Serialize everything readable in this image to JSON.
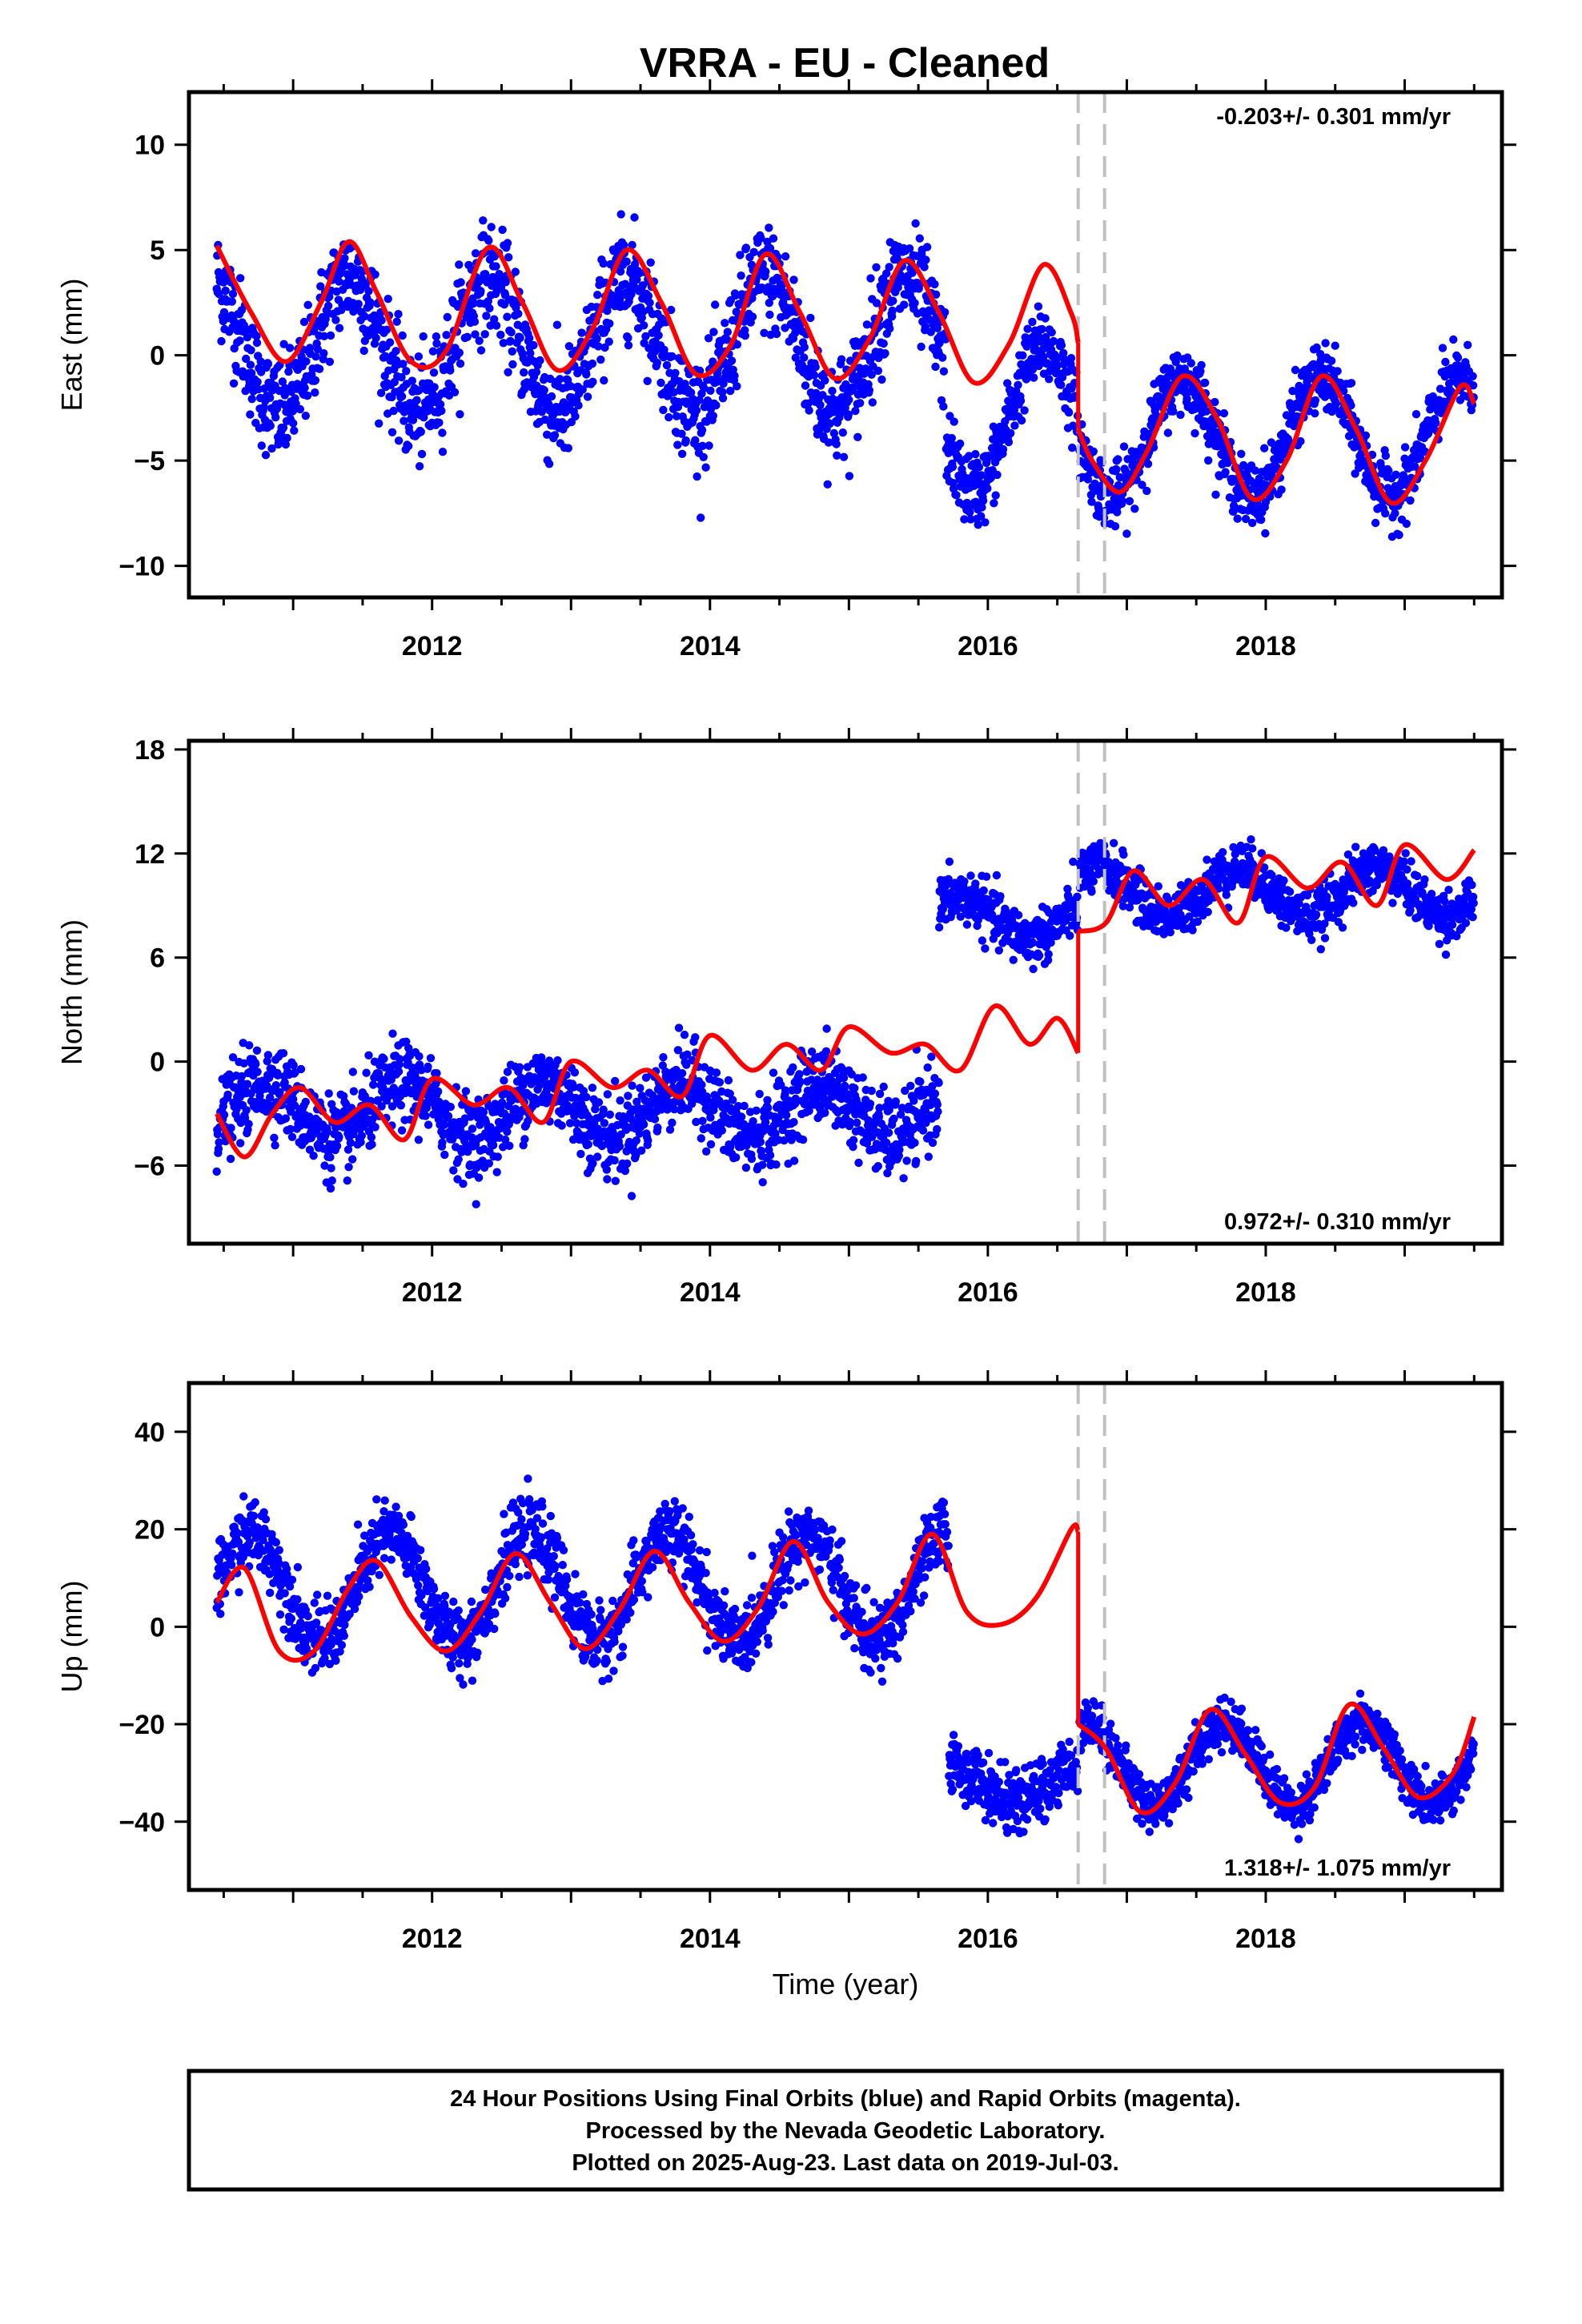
{
  "title": "VRRA  - EU - Cleaned",
  "chart_data": [
    {
      "type": "scatter",
      "name": "east",
      "ylabel": "East (mm)",
      "xlim": [
        2010.25,
        2019.7
      ],
      "ylim": [
        -11.5,
        12.5
      ],
      "yticks": [
        10,
        5,
        0,
        -5,
        -10
      ],
      "ytick_labels": [
        "10",
        "5",
        "0",
        "−5",
        "−10"
      ],
      "xticks": [
        2012,
        2014,
        2016,
        2018
      ],
      "xtick_labels": [
        "2012",
        "2014",
        "2016",
        "2018"
      ],
      "rate_label": "-0.203+/- 0.301 mm/yr",
      "rate_position": "top-right",
      "offsets_years": [
        2016.65,
        2016.84
      ],
      "model_segments": [
        {
          "x": [
            2010.45,
            2010.7,
            2010.95,
            2011.2,
            2011.4,
            2011.6,
            2011.85,
            2012.1,
            2012.4,
            2012.65,
            2012.9,
            2013.15,
            2013.4,
            2013.65,
            2013.9,
            2014.15,
            2014.4,
            2014.65,
            2014.9,
            2015.15,
            2015.4,
            2015.65,
            2015.9,
            2016.15,
            2016.4,
            2016.6,
            2016.65
          ],
          "y": [
            5.2,
            2.0,
            -0.3,
            2.5,
            5.4,
            3.0,
            -0.3,
            0.2,
            5.1,
            2.5,
            -0.7,
            1.2,
            5.0,
            2.5,
            -0.9,
            0.5,
            4.8,
            2.0,
            -1.1,
            0.8,
            4.5,
            2.0,
            -1.3,
            0.5,
            4.3,
            2.0,
            0.6
          ]
        },
        {
          "x": [
            2016.65,
            2016.75,
            2016.95,
            2017.15,
            2017.4,
            2017.65,
            2017.9,
            2018.15,
            2018.4,
            2018.65,
            2018.9,
            2019.15,
            2019.4,
            2019.5
          ],
          "y": [
            -3.5,
            -5.0,
            -6.5,
            -4.5,
            -1.0,
            -3.0,
            -6.8,
            -5.0,
            -1.0,
            -3.5,
            -7.0,
            -5.0,
            -1.5,
            -2.3
          ]
        }
      ],
      "scatter_segments": [
        {
          "x0": 2010.45,
          "x1": 2015.7,
          "offset": 0.5,
          "amp": 3.2,
          "phase": 0.0,
          "noise": 2.3
        },
        {
          "x0": 2015.7,
          "x1": 2016.65,
          "offset": -3.0,
          "amp": 3.4,
          "phase": 0.0,
          "noise": 1.6
        },
        {
          "x0": 2016.66,
          "x1": 2019.5,
          "offset": -3.9,
          "amp": 2.8,
          "phase": 0.0,
          "noise": 1.4
        }
      ]
    },
    {
      "type": "scatter",
      "name": "north",
      "ylabel": "North (mm)",
      "xlim": [
        2010.25,
        2019.7
      ],
      "ylim": [
        -10.5,
        18.5
      ],
      "yticks": [
        18,
        12,
        6,
        0,
        -6
      ],
      "ytick_labels": [
        "18",
        "12",
        "6",
        "0",
        "−6"
      ],
      "xticks": [
        2012,
        2014,
        2016,
        2018
      ],
      "xtick_labels": [
        "2012",
        "2014",
        "2016",
        "2018"
      ],
      "rate_label": "0.972+/- 0.310 mm/yr",
      "rate_position": "bottom-right",
      "offsets_years": [
        2016.65,
        2016.84
      ],
      "model_segments": [
        {
          "x": [
            2010.45,
            2010.65,
            2010.85,
            2011.05,
            2011.3,
            2011.55,
            2011.8,
            2012.0,
            2012.3,
            2012.55,
            2012.8,
            2013.0,
            2013.3,
            2013.55,
            2013.8,
            2014.0,
            2014.3,
            2014.55,
            2014.8,
            2015.0,
            2015.3,
            2015.55,
            2015.8,
            2016.05,
            2016.3,
            2016.5,
            2016.65
          ],
          "y": [
            -3.0,
            -5.5,
            -3.0,
            -1.5,
            -3.5,
            -2.5,
            -4.5,
            -1.0,
            -2.5,
            -1.5,
            -3.5,
            0.0,
            -1.5,
            -0.5,
            -2.0,
            1.5,
            -0.5,
            1.0,
            -0.5,
            2.0,
            0.5,
            1.0,
            -0.5,
            3.2,
            1.0,
            2.5,
            0.5
          ]
        },
        {
          "x": [
            2016.65,
            2016.85,
            2017.05,
            2017.3,
            2017.55,
            2017.8,
            2018.0,
            2018.3,
            2018.55,
            2018.8,
            2019.0,
            2019.3,
            2019.5
          ],
          "y": [
            7.5,
            8.0,
            11.0,
            9.0,
            10.5,
            8.0,
            11.8,
            10.0,
            11.5,
            9.0,
            12.5,
            10.5,
            12.2
          ]
        }
      ],
      "scatter_segments": [
        {
          "x0": 2010.45,
          "x1": 2015.65,
          "offset": -2.8,
          "amp": 1.6,
          "phase": 0.4,
          "noise": 2.1
        },
        {
          "x0": 2015.65,
          "x1": 2016.65,
          "offset": 8.3,
          "amp": 1.2,
          "phase": 0.4,
          "noise": 1.4
        },
        {
          "x0": 2016.66,
          "x1": 2019.5,
          "offset": 9.8,
          "amp": 1.4,
          "phase": 0.4,
          "noise": 1.3
        }
      ]
    },
    {
      "type": "scatter",
      "name": "up",
      "ylabel": "Up (mm)",
      "xlabel": "Time (year)",
      "xlim": [
        2010.25,
        2019.7
      ],
      "ylim": [
        -54,
        50
      ],
      "yticks": [
        40,
        20,
        0,
        -20,
        -40
      ],
      "ytick_labels": [
        "40",
        "20",
        "0",
        "−20",
        "−40"
      ],
      "xticks": [
        2012,
        2014,
        2016,
        2018
      ],
      "xtick_labels": [
        "2012",
        "2014",
        "2016",
        "2018"
      ],
      "rate_label": "1.318+/- 1.075 mm/yr",
      "rate_position": "bottom-right",
      "offsets_years": [
        2016.65,
        2016.84
      ],
      "model_segments": [
        {
          "x": [
            2010.45,
            2010.65,
            2010.9,
            2011.15,
            2011.4,
            2011.6,
            2011.85,
            2012.1,
            2012.35,
            2012.6,
            2012.85,
            2013.1,
            2013.35,
            2013.6,
            2013.85,
            2014.1,
            2014.35,
            2014.6,
            2014.85,
            2015.1,
            2015.35,
            2015.6,
            2015.85,
            2016.1,
            2016.35,
            2016.6,
            2016.65
          ],
          "y": [
            5.0,
            12.0,
            -5.0,
            -5.0,
            8.0,
            13.5,
            2.0,
            -5.0,
            3.0,
            15.0,
            5.0,
            -4.5,
            3.5,
            15.5,
            5.0,
            -3.0,
            4.0,
            17.5,
            5.0,
            -1.5,
            5.0,
            19.0,
            3.0,
            0.5,
            6.0,
            20.0,
            19.5
          ]
        },
        {
          "x": [
            2016.65,
            2016.85,
            2017.1,
            2017.35,
            2017.6,
            2017.85,
            2018.1,
            2018.35,
            2018.6,
            2018.85,
            2019.1,
            2019.35,
            2019.5
          ],
          "y": [
            -20.0,
            -25.0,
            -38.0,
            -32.0,
            -17.0,
            -26.0,
            -36.0,
            -33.0,
            -16.0,
            -25.0,
            -35.0,
            -30.0,
            -18.5
          ]
        }
      ],
      "scatter_segments": [
        {
          "x0": 2010.45,
          "x1": 2015.72,
          "offset": 8.0,
          "amp": 11.0,
          "phase": 0.3,
          "noise": 6.5
        },
        {
          "x0": 2015.72,
          "x1": 2016.65,
          "offset": -32.0,
          "amp": 4.0,
          "phase": 0.3,
          "noise": 5.5
        },
        {
          "x0": 2016.66,
          "x1": 2019.5,
          "offset": -28.0,
          "amp": 8.5,
          "phase": 0.3,
          "noise": 4.5
        }
      ]
    }
  ],
  "footer": {
    "line1": "24 Hour Positions Using Final Orbits (blue) and Rapid Orbits (magenta).",
    "line2": "Processed by the Nevada Geodetic Laboratory.",
    "line3": "Plotted on 2025-Aug-23. Last data on 2019-Jul-03."
  },
  "colors": {
    "points": "#0000ff",
    "model": "#ff0000",
    "offset_line": "#c0c0c0",
    "frame": "#000000"
  }
}
